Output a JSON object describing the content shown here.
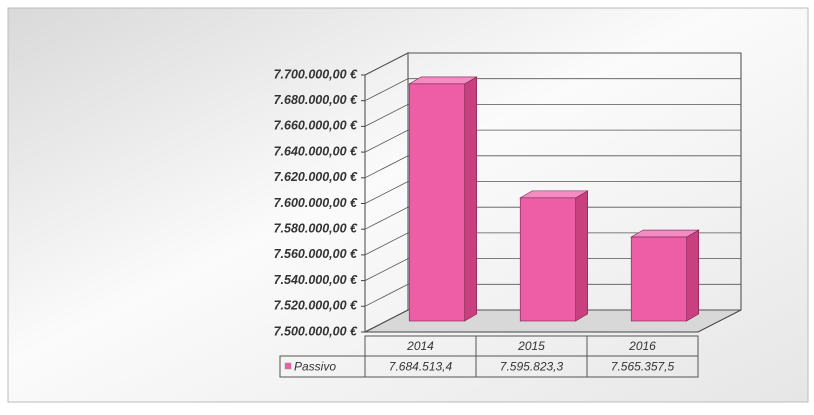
{
  "chart_data": {
    "type": "bar3d",
    "categories": [
      "2014",
      "2015",
      "2016"
    ],
    "series": [
      {
        "name": "Passivo",
        "color": "#ee5ea6",
        "values": [
          7684513.4,
          7595823.3,
          7565357.5
        ],
        "value_labels": [
          "7.684.513,4",
          "7.595.823,3",
          "7.565.357,5"
        ]
      }
    ],
    "ylim": [
      7500000,
      7700000
    ],
    "yticks": [
      {
        "value": 7500000,
        "label": "7.500.000,00 €"
      },
      {
        "value": 7520000,
        "label": "7.520.000,00 €"
      },
      {
        "value": 7540000,
        "label": "7.540.000,00 €"
      },
      {
        "value": 7560000,
        "label": "7.560.000,00 €"
      },
      {
        "value": 7580000,
        "label": "7.580.000,00 €"
      },
      {
        "value": 7600000,
        "label": "7.600.000,00 €"
      },
      {
        "value": 7620000,
        "label": "7.620.000,00 €"
      },
      {
        "value": 7640000,
        "label": "7.640.000,00 €"
      },
      {
        "value": 7660000,
        "label": "7.660.000,00 €"
      },
      {
        "value": 7680000,
        "label": "7.680.000,00 €"
      },
      {
        "value": 7700000,
        "label": "7.700.000,00 €"
      }
    ],
    "grid": true
  }
}
